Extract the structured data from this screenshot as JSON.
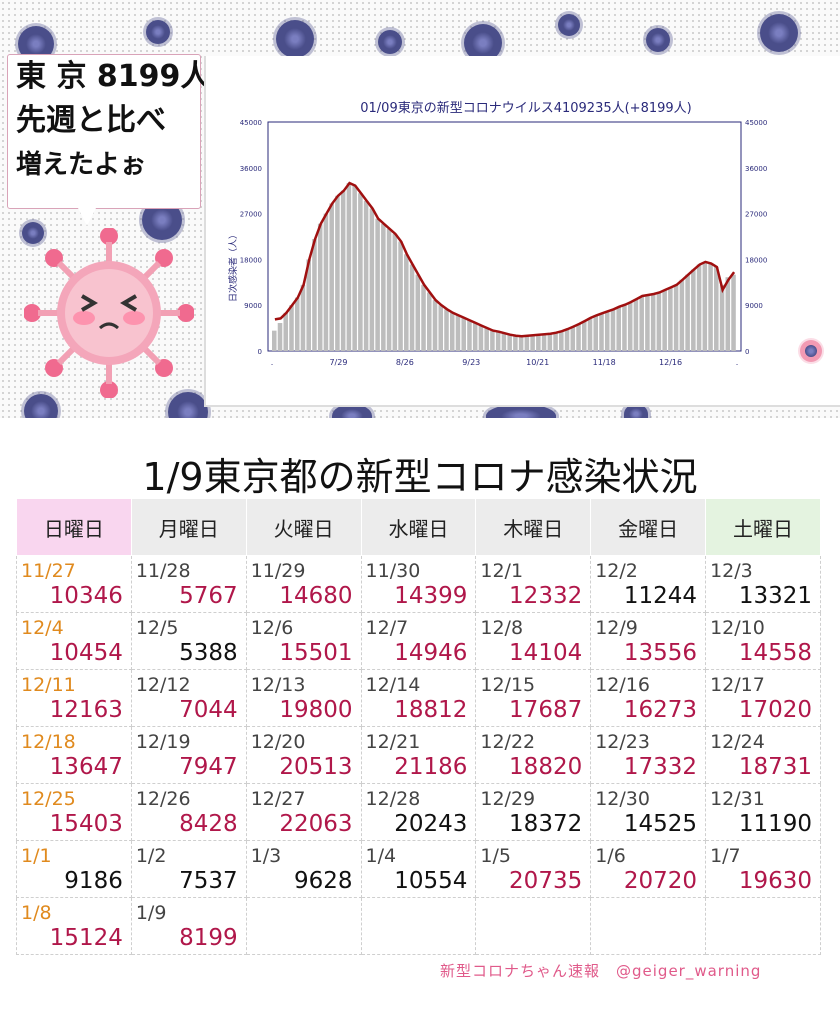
{
  "speech": {
    "line1": "東 京 8199人",
    "line2": "先週と比べ",
    "line3": "増えたよぉ"
  },
  "chart_data": {
    "type": "bar",
    "title": "01/09東京の新型コロナウイルス4109235人(+8199人)",
    "ylabel": "日次感染者（人）",
    "ylim": [
      0,
      45000
    ],
    "yticks": [
      0,
      9000,
      18000,
      27000,
      36000,
      45000
    ],
    "xtick_labels": [
      ".",
      "7/29",
      "8/26",
      "9/23",
      "10/21",
      "11/18",
      "12/16",
      "."
    ],
    "series": [
      {
        "kind": "bar",
        "values": [
          4000,
          5500,
          7500,
          9000,
          10500,
          13000,
          18000,
          22000,
          25000,
          27000,
          29000,
          30500,
          31500,
          33000,
          32500,
          31000,
          29500,
          28000,
          26000,
          25000,
          24000,
          23000,
          21500,
          19000,
          17000,
          15000,
          13000,
          11500,
          10000,
          9000,
          8200,
          7500,
          7000,
          6500,
          6000,
          5500,
          5000,
          4500,
          4000,
          3800,
          3500,
          3200,
          3000,
          2900,
          3000,
          3100,
          3200,
          3300,
          3400,
          3600,
          3900,
          4300,
          4800,
          5300,
          5900,
          6500,
          7000,
          7400,
          7800,
          8200,
          8700,
          9100,
          9600,
          10200,
          10800,
          11000,
          11200,
          11500,
          12000,
          12500,
          13000,
          14000,
          15000,
          16000,
          17000,
          17500,
          17200,
          16500,
          13000,
          14500,
          15000
        ]
      },
      {
        "kind": "line",
        "values": [
          6200,
          6400,
          7500,
          9000,
          10500,
          13000,
          18000,
          22000,
          25000,
          27000,
          29000,
          30500,
          31500,
          33000,
          32500,
          31000,
          29500,
          28000,
          26000,
          25000,
          24000,
          23000,
          21500,
          19000,
          17000,
          15000,
          13000,
          11500,
          10000,
          9000,
          8200,
          7500,
          7000,
          6500,
          6000,
          5500,
          5000,
          4500,
          4000,
          3800,
          3500,
          3200,
          3000,
          2900,
          3000,
          3100,
          3200,
          3300,
          3400,
          3600,
          3900,
          4300,
          4800,
          5300,
          5900,
          6500,
          7000,
          7400,
          7800,
          8200,
          8700,
          9100,
          9600,
          10200,
          10800,
          11000,
          11200,
          11500,
          12000,
          12500,
          13000,
          14000,
          15000,
          16000,
          17000,
          17500,
          17200,
          16500,
          12000,
          14000,
          15500
        ]
      }
    ]
  },
  "table": {
    "title": "1/9東京都の新型コロナ感染状況",
    "headers": [
      "日曜日",
      "月曜日",
      "火曜日",
      "水曜日",
      "木曜日",
      "金曜日",
      "土曜日"
    ],
    "rows": [
      [
        {
          "d": "11/27",
          "n": "10346",
          "up": true
        },
        {
          "d": "11/28",
          "n": "5767",
          "up": true
        },
        {
          "d": "11/29",
          "n": "14680",
          "up": true
        },
        {
          "d": "11/30",
          "n": "14399",
          "up": true
        },
        {
          "d": "12/1",
          "n": "12332",
          "up": true
        },
        {
          "d": "12/2",
          "n": "11244",
          "up": false
        },
        {
          "d": "12/3",
          "n": "13321",
          "up": false
        }
      ],
      [
        {
          "d": "12/4",
          "n": "10454",
          "up": true
        },
        {
          "d": "12/5",
          "n": "5388",
          "up": false
        },
        {
          "d": "12/6",
          "n": "15501",
          "up": true
        },
        {
          "d": "12/7",
          "n": "14946",
          "up": true
        },
        {
          "d": "12/8",
          "n": "14104",
          "up": true
        },
        {
          "d": "12/9",
          "n": "13556",
          "up": true
        },
        {
          "d": "12/10",
          "n": "14558",
          "up": true
        }
      ],
      [
        {
          "d": "12/11",
          "n": "12163",
          "up": true
        },
        {
          "d": "12/12",
          "n": "7044",
          "up": true
        },
        {
          "d": "12/13",
          "n": "19800",
          "up": true
        },
        {
          "d": "12/14",
          "n": "18812",
          "up": true
        },
        {
          "d": "12/15",
          "n": "17687",
          "up": true
        },
        {
          "d": "12/16",
          "n": "16273",
          "up": true
        },
        {
          "d": "12/17",
          "n": "17020",
          "up": true
        }
      ],
      [
        {
          "d": "12/18",
          "n": "13647",
          "up": true
        },
        {
          "d": "12/19",
          "n": "7947",
          "up": true
        },
        {
          "d": "12/20",
          "n": "20513",
          "up": true
        },
        {
          "d": "12/21",
          "n": "21186",
          "up": true
        },
        {
          "d": "12/22",
          "n": "18820",
          "up": true
        },
        {
          "d": "12/23",
          "n": "17332",
          "up": true
        },
        {
          "d": "12/24",
          "n": "18731",
          "up": true
        }
      ],
      [
        {
          "d": "12/25",
          "n": "15403",
          "up": true
        },
        {
          "d": "12/26",
          "n": "8428",
          "up": true
        },
        {
          "d": "12/27",
          "n": "22063",
          "up": true
        },
        {
          "d": "12/28",
          "n": "20243",
          "up": false
        },
        {
          "d": "12/29",
          "n": "18372",
          "up": false
        },
        {
          "d": "12/30",
          "n": "14525",
          "up": false
        },
        {
          "d": "12/31",
          "n": "11190",
          "up": false
        }
      ],
      [
        {
          "d": "1/1",
          "n": "9186",
          "up": false
        },
        {
          "d": "1/2",
          "n": "7537",
          "up": false
        },
        {
          "d": "1/3",
          "n": "9628",
          "up": false
        },
        {
          "d": "1/4",
          "n": "10554",
          "up": false
        },
        {
          "d": "1/5",
          "n": "20735",
          "up": true
        },
        {
          "d": "1/6",
          "n": "20720",
          "up": true
        },
        {
          "d": "1/7",
          "n": "19630",
          "up": true
        }
      ],
      [
        {
          "d": "1/8",
          "n": "15124",
          "up": true
        },
        {
          "d": "1/9",
          "n": "8199",
          "up": true
        },
        {
          "d": "",
          "n": ""
        },
        {
          "d": "",
          "n": ""
        },
        {
          "d": "",
          "n": ""
        },
        {
          "d": "",
          "n": ""
        },
        {
          "d": "",
          "n": ""
        }
      ]
    ]
  },
  "credit": "新型コロナちゃん速報　@geiger_warning",
  "colors": {
    "up": "#b0174a",
    "down": "#111111",
    "sunday_date": "#e08a1e",
    "line": "#a01010",
    "bar": "#bdbdbd"
  }
}
